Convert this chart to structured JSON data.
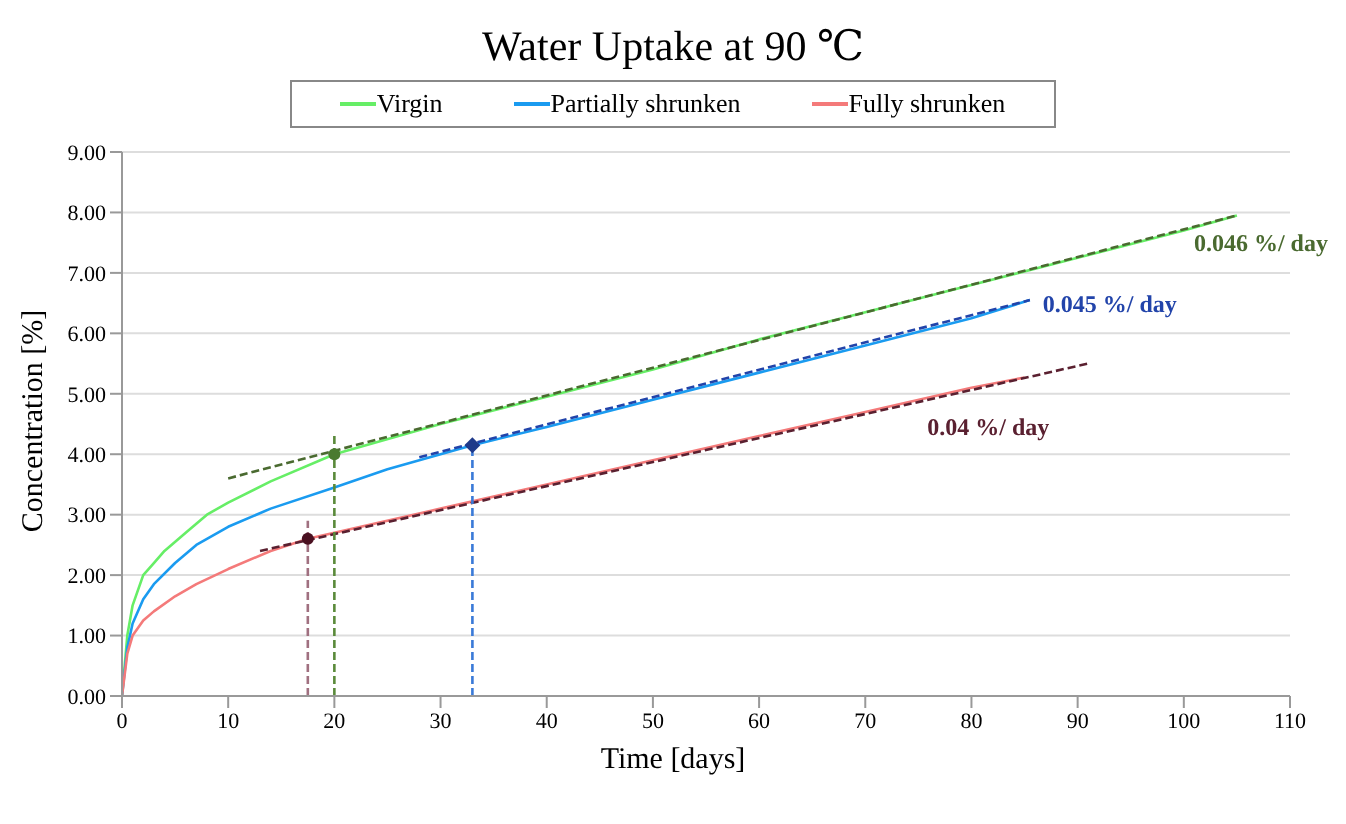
{
  "chart_data": {
    "type": "line",
    "title": "Water Uptake at 90 ℃",
    "xlabel": "Time [days]",
    "ylabel": "Concentration [%]",
    "xlim": [
      0,
      110
    ],
    "xticks": [
      0,
      10,
      20,
      30,
      40,
      50,
      60,
      70,
      80,
      90,
      100,
      110
    ],
    "ylim": [
      0,
      9
    ],
    "yticks": [
      {
        "value": 0,
        "label": "0.00"
      },
      {
        "value": 1,
        "label": "1.00"
      },
      {
        "value": 2,
        "label": "2.00"
      },
      {
        "value": 3,
        "label": "3.00"
      },
      {
        "value": 4,
        "label": "4.00"
      },
      {
        "value": 5,
        "label": "5.00"
      },
      {
        "value": 6,
        "label": "6.00"
      },
      {
        "value": 7,
        "label": "7.00"
      },
      {
        "value": 8,
        "label": "8.00"
      },
      {
        "value": 9,
        "label": "9.00"
      }
    ],
    "grid": "y",
    "legend": "top",
    "marker": "none",
    "line_style": "solid",
    "series": [
      {
        "name": "Virgin",
        "color": "#66ee66",
        "x": [
          0,
          0.5,
          1,
          2,
          3,
          4,
          6,
          8,
          10,
          14,
          20,
          30,
          40,
          50,
          60,
          70,
          80,
          90,
          100,
          105
        ],
        "values": [
          0,
          1.0,
          1.5,
          2.0,
          2.2,
          2.4,
          2.7,
          3.0,
          3.2,
          3.55,
          4.0,
          4.5,
          4.95,
          5.4,
          5.9,
          6.35,
          6.8,
          7.25,
          7.7,
          7.95
        ]
      },
      {
        "name": "Partially shrunken",
        "color": "#1a9bf0",
        "x": [
          0,
          0.5,
          1,
          2,
          3,
          5,
          7,
          10,
          14,
          20,
          25,
          33,
          40,
          50,
          60,
          70,
          80,
          85.5
        ],
        "values": [
          0,
          0.8,
          1.2,
          1.6,
          1.85,
          2.2,
          2.5,
          2.8,
          3.1,
          3.45,
          3.75,
          4.15,
          4.45,
          4.9,
          5.35,
          5.8,
          6.25,
          6.55
        ]
      },
      {
        "name": "Fully shrunken",
        "color": "#f47a7a",
        "x": [
          0,
          0.5,
          1,
          2,
          3,
          5,
          7,
          10,
          14,
          17.5,
          20,
          30,
          40,
          50,
          60,
          70,
          80,
          85
        ],
        "values": [
          0,
          0.7,
          1.0,
          1.25,
          1.4,
          1.65,
          1.85,
          2.1,
          2.4,
          2.6,
          2.7,
          3.1,
          3.5,
          3.9,
          4.3,
          4.7,
          5.1,
          5.27
        ]
      },
      {
        "type": "line",
        "line_style": "dashed",
        "color": "#4a6a30",
        "x": [
          10,
          105
        ],
        "values": [
          3.6,
          7.95
        ]
      },
      {
        "type": "line",
        "line_style": "dashed",
        "color": "#2244aa",
        "x": [
          28,
          85.5
        ],
        "values": [
          3.95,
          6.55
        ]
      },
      {
        "type": "line",
        "line_style": "dashed",
        "color": "#5a2030",
        "x": [
          13,
          91
        ],
        "values": [
          2.4,
          5.5
        ]
      },
      {
        "type": "line",
        "line_style": "dashed",
        "color": "#5a8a3a",
        "x": [
          20,
          20
        ],
        "values": [
          0,
          4.3
        ]
      },
      {
        "type": "line",
        "line_style": "dashed",
        "color": "#3a7ad8",
        "x": [
          33,
          33
        ],
        "values": [
          0,
          4.2
        ]
      },
      {
        "type": "line",
        "line_style": "dashed",
        "color": "#a07080",
        "x": [
          17.5,
          17.5
        ],
        "values": [
          0,
          2.9
        ]
      },
      {
        "type": "scatter",
        "marker": "circle",
        "color": "#4a7a30",
        "x": [
          20
        ],
        "values": [
          4.0
        ]
      },
      {
        "type": "scatter",
        "marker": "diamond",
        "color": "#1f3a8a",
        "x": [
          33
        ],
        "values": [
          4.15
        ]
      },
      {
        "type": "scatter",
        "marker": "circle",
        "color": "#4a1020",
        "x": [
          17.5
        ],
        "values": [
          2.6
        ]
      }
    ],
    "annotations": [
      "0.046 %/ day",
      "0.045 %/ day",
      "0.04 %/ day"
    ]
  }
}
